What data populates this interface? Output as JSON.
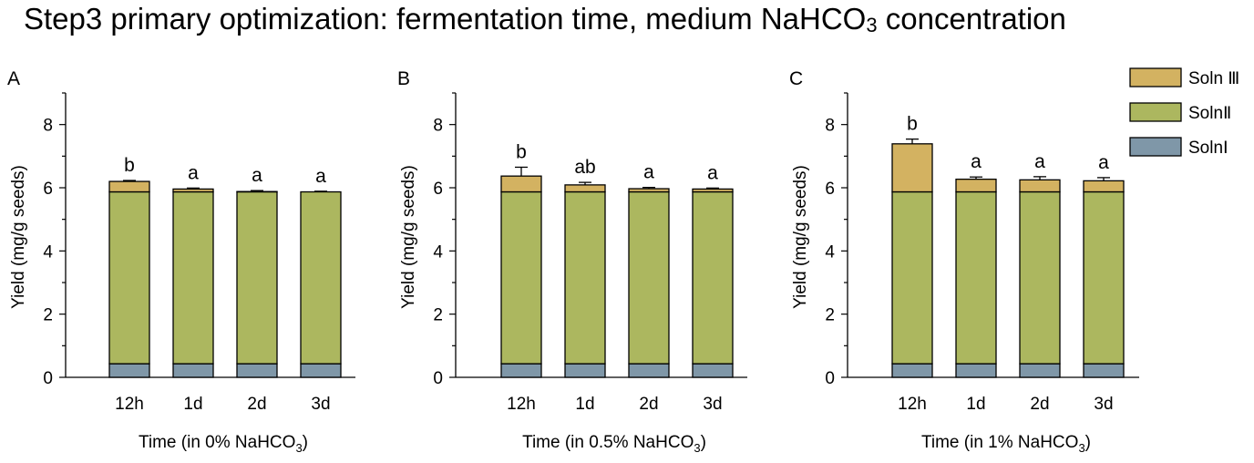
{
  "title": {
    "main": "Step3  primary optimization: fermentation time, medium NaHCO",
    "sub": "3",
    "tail": " concentration"
  },
  "colors": {
    "soln1": "#7f97a8",
    "soln2": "#acb75f",
    "soln3": "#d3b261",
    "stroke": "#000000"
  },
  "legend": [
    {
      "key": "soln3",
      "label": "Soln Ⅲ"
    },
    {
      "key": "soln2",
      "label": "SolnⅡ"
    },
    {
      "key": "soln1",
      "label": "SolnⅠ"
    }
  ],
  "chart_data": [
    {
      "type": "bar",
      "stacked": true,
      "panel": "A",
      "ylabel": "Yield (mg/g seeds)",
      "xlabel": "Time (in 0% NaHCO",
      "xlabel_sub": "3",
      "xlabel_tail": ")",
      "ylim": [
        0,
        9
      ],
      "yticks": [
        0,
        2,
        4,
        6,
        8
      ],
      "categories": [
        "12h",
        "1d",
        "2d",
        "3d"
      ],
      "series": [
        {
          "key": "soln1",
          "name": "SolnⅠ",
          "values": [
            0.43,
            0.43,
            0.43,
            0.43
          ]
        },
        {
          "key": "soln2",
          "name": "SolnⅡ",
          "values": [
            5.44,
            5.44,
            5.44,
            5.44
          ]
        },
        {
          "key": "soln3",
          "name": "Soln Ⅲ",
          "values": [
            0.33,
            0.09,
            0.01,
            0.0
          ]
        }
      ],
      "error": [
        0.03,
        0.03,
        0.03,
        0.02
      ],
      "letters": [
        "b",
        "a",
        "a",
        "a"
      ]
    },
    {
      "type": "bar",
      "stacked": true,
      "panel": "B",
      "ylabel": "Yield (mg/g seeds)",
      "xlabel": "Time (in 0.5% NaHCO",
      "xlabel_sub": "3",
      "xlabel_tail": ")",
      "ylim": [
        0,
        9
      ],
      "yticks": [
        0,
        2,
        4,
        6,
        8
      ],
      "categories": [
        "12h",
        "1d",
        "2d",
        "3d"
      ],
      "series": [
        {
          "key": "soln1",
          "name": "SolnⅠ",
          "values": [
            0.43,
            0.43,
            0.43,
            0.43
          ]
        },
        {
          "key": "soln2",
          "name": "SolnⅡ",
          "values": [
            5.44,
            5.44,
            5.44,
            5.44
          ]
        },
        {
          "key": "soln3",
          "name": "Soln Ⅲ",
          "values": [
            0.5,
            0.22,
            0.1,
            0.09
          ]
        }
      ],
      "error": [
        0.28,
        0.08,
        0.04,
        0.03
      ],
      "letters": [
        "b",
        "ab",
        "a",
        "a"
      ]
    },
    {
      "type": "bar",
      "stacked": true,
      "panel": "C",
      "ylabel": "Yield (mg/g seeds)",
      "xlabel": "Time (in 1% NaHCO",
      "xlabel_sub": "3",
      "xlabel_tail": ")",
      "ylim": [
        0,
        9
      ],
      "yticks": [
        0,
        2,
        4,
        6,
        8
      ],
      "categories": [
        "12h",
        "1d",
        "2d",
        "3d"
      ],
      "series": [
        {
          "key": "soln1",
          "name": "SolnⅠ",
          "values": [
            0.43,
            0.43,
            0.43,
            0.43
          ]
        },
        {
          "key": "soln2",
          "name": "SolnⅡ",
          "values": [
            5.44,
            5.44,
            5.44,
            5.44
          ]
        },
        {
          "key": "soln3",
          "name": "Soln Ⅲ",
          "values": [
            1.52,
            0.4,
            0.38,
            0.35
          ]
        }
      ],
      "error": [
        0.15,
        0.07,
        0.1,
        0.1
      ],
      "letters": [
        "b",
        "a",
        "a",
        "a"
      ]
    }
  ]
}
